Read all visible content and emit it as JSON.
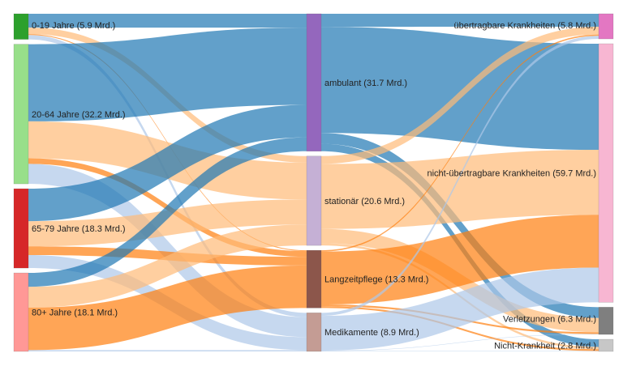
{
  "chart_data": {
    "type": "sankey",
    "title": "",
    "nodes": [
      {
        "id": "a0",
        "column": 0,
        "label": "0-19 Jahre (5.9 Mrd.)",
        "value": 5.9,
        "color": "#2ca02c"
      },
      {
        "id": "a1",
        "column": 0,
        "label": "20-64 Jahre (32.2 Mrd.)",
        "value": 32.2,
        "color": "#98df8a"
      },
      {
        "id": "a2",
        "column": 0,
        "label": "65-79 Jahre (18.3 Mrd.)",
        "value": 18.3,
        "color": "#d62728"
      },
      {
        "id": "a3",
        "column": 0,
        "label": "80+ Jahre (18.1 Mrd.)",
        "value": 18.1,
        "color": "#ff9896"
      },
      {
        "id": "t0",
        "column": 1,
        "label": "ambulant (31.7 Mrd.)",
        "value": 31.7,
        "color": "#9467bd"
      },
      {
        "id": "t1",
        "column": 1,
        "label": "stationär (20.6 Mrd.)",
        "value": 20.6,
        "color": "#c5b0d5"
      },
      {
        "id": "t2",
        "column": 1,
        "label": "Langzeitpflege (13.3 Mrd.)",
        "value": 13.3,
        "color": "#8c564b"
      },
      {
        "id": "t3",
        "column": 1,
        "label": "Medikamente (8.9 Mrd.)",
        "value": 8.9,
        "color": "#c49c94"
      },
      {
        "id": "d0",
        "column": 2,
        "label": "übertragbare Krankheiten (5.8 Mrd.)",
        "value": 5.8,
        "color": "#e377c2"
      },
      {
        "id": "d1",
        "column": 2,
        "label": "nicht-übertragbare Krankheiten (59.7 Mrd.)",
        "value": 59.7,
        "color": "#f7b6d2"
      },
      {
        "id": "d2",
        "column": 2,
        "label": "Verletzungen (6.3 Mrd.)",
        "value": 6.3,
        "color": "#7f7f7f"
      },
      {
        "id": "d3",
        "column": 2,
        "label": "Nicht-Krankheit (2.8 Mrd.)",
        "value": 2.8,
        "color": "#c7c7c7"
      }
    ],
    "links": [
      {
        "source": "a0",
        "target": "t0",
        "value": 3.2,
        "color": "#1f77b4"
      },
      {
        "source": "a0",
        "target": "t1",
        "value": 1.5,
        "color": "#ffbb78"
      },
      {
        "source": "a0",
        "target": "t2",
        "value": 0.2,
        "color": "#ff7f0e"
      },
      {
        "source": "a0",
        "target": "t3",
        "value": 1.0,
        "color": "#aec7e8"
      },
      {
        "source": "a1",
        "target": "t0",
        "value": 17.8,
        "color": "#1f77b4"
      },
      {
        "source": "a1",
        "target": "t1",
        "value": 8.5,
        "color": "#ffbb78"
      },
      {
        "source": "a1",
        "target": "t2",
        "value": 1.3,
        "color": "#ff7f0e"
      },
      {
        "source": "a1",
        "target": "t3",
        "value": 4.6,
        "color": "#aec7e8"
      },
      {
        "source": "a2",
        "target": "t0",
        "value": 7.5,
        "color": "#1f77b4"
      },
      {
        "source": "a2",
        "target": "t1",
        "value": 5.8,
        "color": "#ffbb78"
      },
      {
        "source": "a2",
        "target": "t2",
        "value": 2.0,
        "color": "#ff7f0e"
      },
      {
        "source": "a2",
        "target": "t3",
        "value": 3.0,
        "color": "#aec7e8"
      },
      {
        "source": "a3",
        "target": "t0",
        "value": 3.2,
        "color": "#1f77b4"
      },
      {
        "source": "a3",
        "target": "t1",
        "value": 4.8,
        "color": "#ffbb78"
      },
      {
        "source": "a3",
        "target": "t2",
        "value": 9.8,
        "color": "#ff7f0e"
      },
      {
        "source": "a3",
        "target": "t3",
        "value": 0.3,
        "color": "#aec7e8"
      },
      {
        "source": "t0",
        "target": "d0",
        "value": 3.0,
        "color": "#1f77b4"
      },
      {
        "source": "t0",
        "target": "d1",
        "value": 24.5,
        "color": "#1f77b4"
      },
      {
        "source": "t0",
        "target": "d2",
        "value": 2.5,
        "color": "#1f77b4"
      },
      {
        "source": "t0",
        "target": "d3",
        "value": 1.7,
        "color": "#1f77b4"
      },
      {
        "source": "t1",
        "target": "d0",
        "value": 1.8,
        "color": "#ffbb78"
      },
      {
        "source": "t1",
        "target": "d1",
        "value": 15.0,
        "color": "#ffbb78"
      },
      {
        "source": "t1",
        "target": "d2",
        "value": 3.3,
        "color": "#ffbb78"
      },
      {
        "source": "t1",
        "target": "d3",
        "value": 0.5,
        "color": "#ffbb78"
      },
      {
        "source": "t2",
        "target": "d0",
        "value": 0.3,
        "color": "#ff7f0e"
      },
      {
        "source": "t2",
        "target": "d1",
        "value": 12.2,
        "color": "#ff7f0e"
      },
      {
        "source": "t2",
        "target": "d2",
        "value": 0.4,
        "color": "#ff7f0e"
      },
      {
        "source": "t2",
        "target": "d3",
        "value": 0.4,
        "color": "#ff7f0e"
      },
      {
        "source": "t3",
        "target": "d0",
        "value": 0.7,
        "color": "#aec7e8"
      },
      {
        "source": "t3",
        "target": "d1",
        "value": 8.0,
        "color": "#aec7e8"
      },
      {
        "source": "t3",
        "target": "d2",
        "value": 0.1,
        "color": "#aec7e8"
      },
      {
        "source": "t3",
        "target": "d3",
        "value": 0.1,
        "color": "#aec7e8"
      }
    ]
  }
}
